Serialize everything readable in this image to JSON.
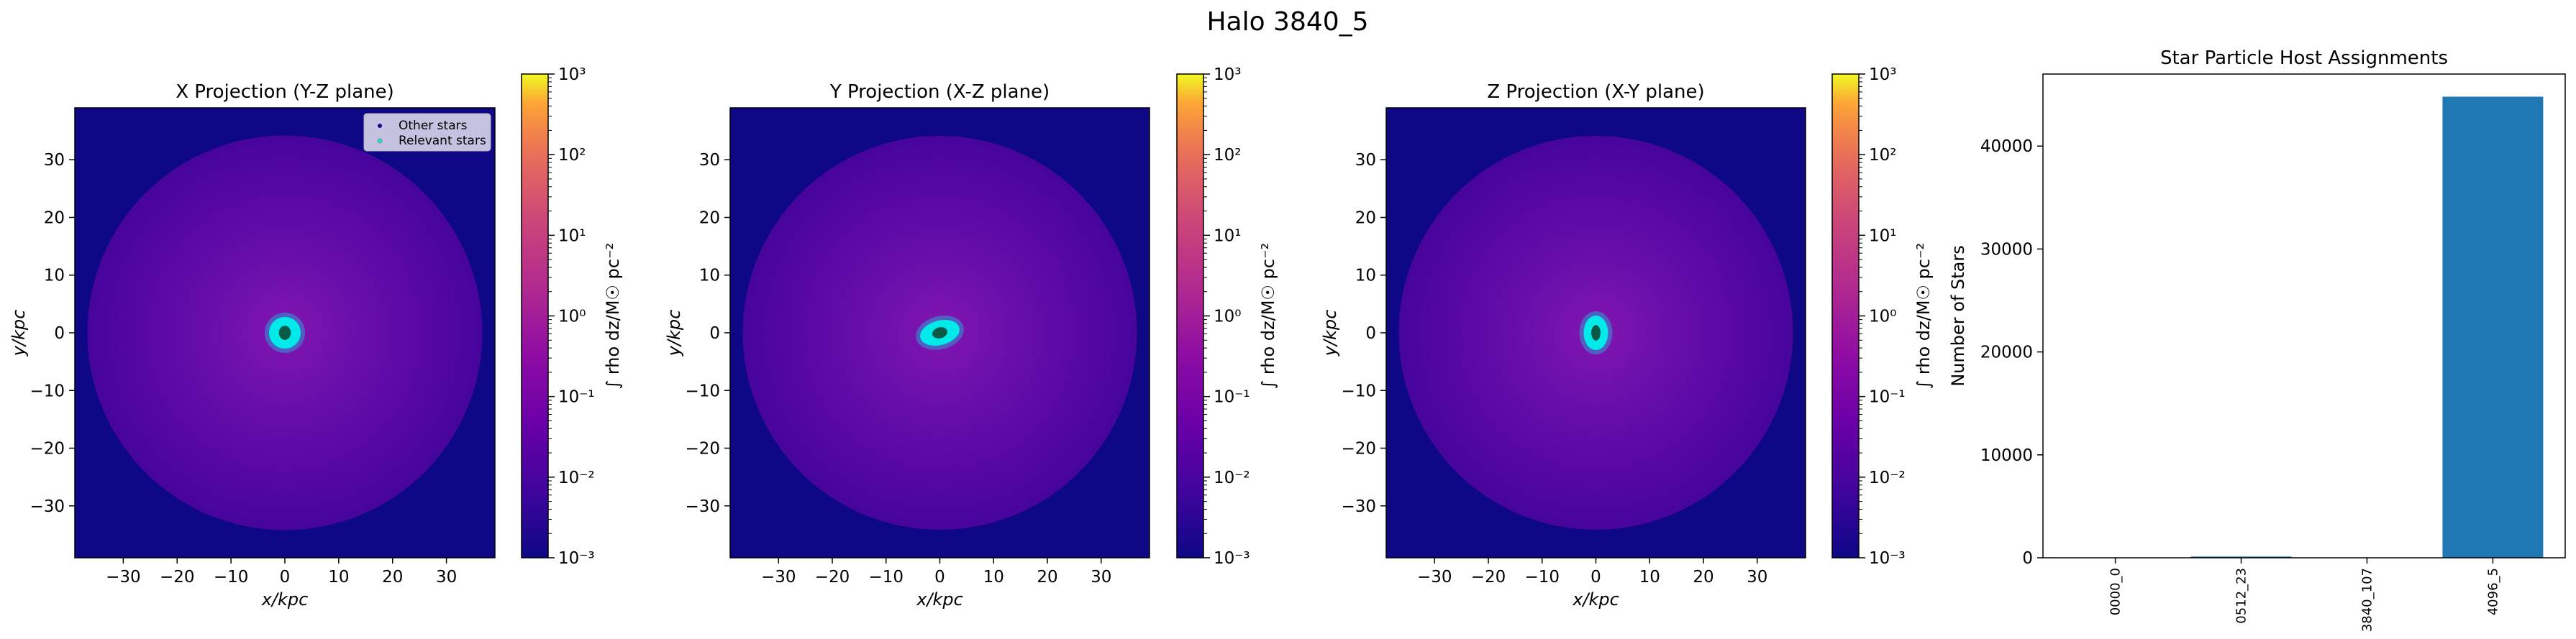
{
  "figure": {
    "title": "Halo 3840_5"
  },
  "colors": {
    "map_background": "#0e0786",
    "halo_inner": "#7a12b0",
    "halo_outer": "#4b05a0",
    "relevant_stars": "#00eaea",
    "core": "#0a5a4a",
    "bar": "#1f77b4",
    "legend_box": "#cfcde6"
  },
  "chart_data": [
    {
      "type": "heatmap",
      "title": "X Projection (Y-Z plane)",
      "xlabel": "x/kpc",
      "ylabel": "y/kpc",
      "xlim": [
        -39,
        39
      ],
      "ylim": [
        -39,
        39
      ],
      "xticks": [
        "−30",
        "−20",
        "−10",
        "0",
        "10",
        "20",
        "30"
      ],
      "yticks": [
        "30",
        "20",
        "10",
        "0",
        "−10",
        "−20",
        "−30"
      ],
      "colorbar": {
        "label": "∫ rho dz/M☉ pc⁻²",
        "scale": "log",
        "range": [
          0.001,
          1000
        ],
        "ticks": [
          "10³",
          "10²",
          "10¹",
          "10⁰",
          "10⁻¹",
          "10⁻²",
          "10⁻³"
        ]
      },
      "legend": {
        "placement": "upper right",
        "entries": [
          "Other stars",
          "Relevant stars"
        ]
      },
      "star_cluster": {
        "center": [
          0,
          0
        ],
        "shape": "round"
      }
    },
    {
      "type": "heatmap",
      "title": "Y Projection (X-Z plane)",
      "xlabel": "x/kpc",
      "ylabel": "y/kpc",
      "xlim": [
        -39,
        39
      ],
      "ylim": [
        -39,
        39
      ],
      "xticks": [
        "−30",
        "−20",
        "−10",
        "0",
        "10",
        "20",
        "30"
      ],
      "yticks": [
        "30",
        "20",
        "10",
        "0",
        "−10",
        "−20",
        "−30"
      ],
      "colorbar": {
        "label": "∫ rho dz/M☉ pc⁻²",
        "scale": "log",
        "range": [
          0.001,
          1000
        ],
        "ticks": [
          "10³",
          "10²",
          "10¹",
          "10⁰",
          "10⁻¹",
          "10⁻²",
          "10⁻³"
        ]
      },
      "star_cluster": {
        "center": [
          0,
          0
        ],
        "shape": "tilted ellipse"
      }
    },
    {
      "type": "heatmap",
      "title": "Z Projection (X-Y plane)",
      "xlabel": "x/kpc",
      "ylabel": "y/kpc",
      "xlim": [
        -39,
        39
      ],
      "ylim": [
        -39,
        39
      ],
      "xticks": [
        "−30",
        "−20",
        "−10",
        "0",
        "10",
        "20",
        "30"
      ],
      "yticks": [
        "30",
        "20",
        "10",
        "0",
        "−10",
        "−20",
        "−30"
      ],
      "colorbar": {
        "label": "∫ rho dz/M☉ pc⁻²",
        "scale": "log",
        "range": [
          0.001,
          1000
        ],
        "ticks": [
          "10³",
          "10²",
          "10¹",
          "10⁰",
          "10⁻¹",
          "10⁻²",
          "10⁻³"
        ]
      },
      "star_cluster": {
        "center": [
          0,
          0
        ],
        "shape": "vertical ellipse"
      }
    },
    {
      "type": "bar",
      "title": "Star Particle Host Assignments",
      "xlabel": "",
      "ylabel": "Number of Stars",
      "categories": [
        "0000_0",
        "0512_23",
        "3840_107",
        "4096_5"
      ],
      "values": [
        10,
        120,
        10,
        44800
      ],
      "ylim": [
        0,
        47000
      ],
      "yticks": [
        0,
        10000,
        20000,
        30000,
        40000
      ]
    }
  ]
}
